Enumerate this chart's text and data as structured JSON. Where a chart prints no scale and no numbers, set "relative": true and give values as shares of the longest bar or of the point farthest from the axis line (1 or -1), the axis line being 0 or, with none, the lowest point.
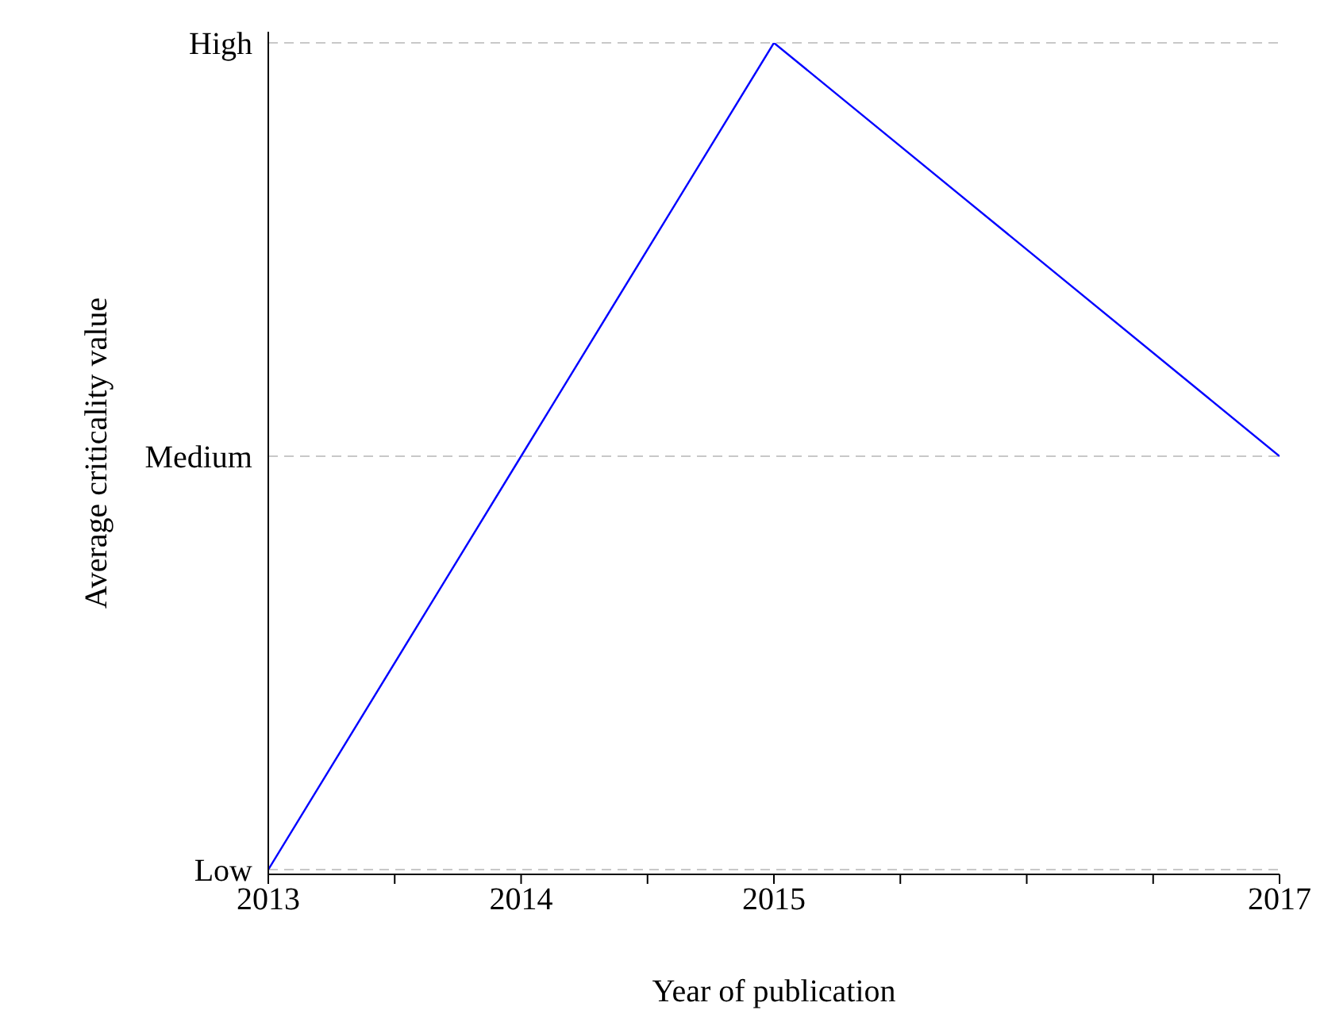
{
  "chart_data": {
    "type": "line",
    "xlabel": "Year of publication",
    "ylabel": "Average criticality value",
    "x": [
      2013,
      2014,
      2015,
      2017
    ],
    "series": [
      {
        "color": "#0000ff",
        "values": [
          0,
          0.5,
          1,
          0.5
        ]
      }
    ],
    "relative": true,
    "ref_lines": [
      {
        "axis": "y",
        "value": 0,
        "label": "Low",
        "color": "#c8c8c8",
        "line_style": "dashed"
      },
      {
        "axis": "y",
        "value": 0.5,
        "label": "Medium",
        "color": "#c8c8c8",
        "line_style": "dashed"
      },
      {
        "axis": "y",
        "value": 1,
        "label": "High",
        "color": "#c8c8c8",
        "line_style": "dashed"
      }
    ],
    "xlim": [
      2013,
      2017
    ],
    "xticks": [
      2013,
      {
        "value": 2013.5,
        "label": null
      },
      2014,
      {
        "value": 2014.5,
        "label": null
      },
      2015,
      {
        "value": 2015.5,
        "label": null
      },
      {
        "value": 2016,
        "label": null
      },
      {
        "value": 2016.5,
        "label": null
      },
      2017
    ],
    "marker": "none",
    "line_style": "solid",
    "legend": false
  }
}
